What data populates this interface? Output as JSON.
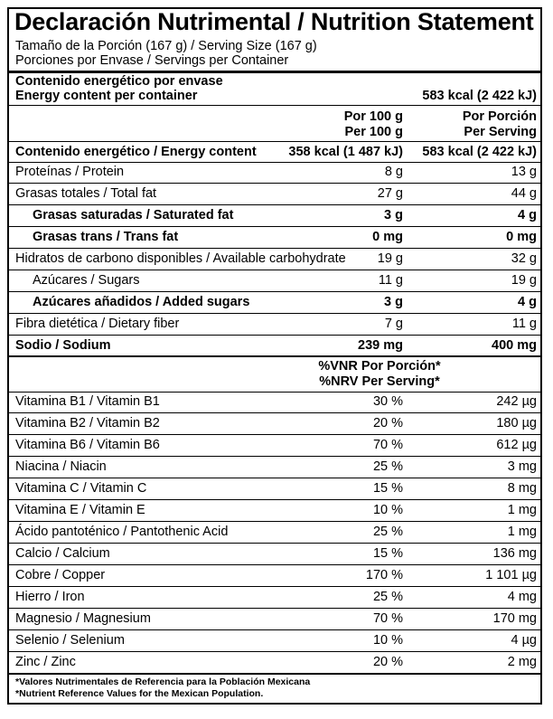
{
  "title": "Declaración Nutrimental / Nutrition Statement",
  "serving_size": "Tamaño de la Porción (167 g) / Serving Size (167 g)",
  "servings_per_container": "Porciones por Envase / Servings per Container",
  "energy_container": {
    "label_es": "Contenido energético por envase",
    "label_en": "Energy content per container",
    "value": "583 kcal (2 422 kJ)"
  },
  "col_headers": {
    "per100_es": "Por 100 g",
    "per100_en": "Per 100 g",
    "serving_es": "Por Porción",
    "serving_en": "Per Serving"
  },
  "energy_row": {
    "label": "Contenido energético / Energy content",
    "per100": "358 kcal (1 487 kJ)",
    "serving": "583 kcal (2 422 kJ)"
  },
  "nutrients": [
    {
      "label": "Proteínas / Protein",
      "per100": "8 g",
      "serving": "13 g"
    },
    {
      "label": "Grasas totales / Total fat",
      "per100": "27 g",
      "serving": "44 g"
    },
    {
      "label": "Grasas saturadas / Saturated fat",
      "per100": "3 g",
      "serving": "4 g"
    },
    {
      "label": "Grasas trans / Trans fat",
      "per100": "0 mg",
      "serving": "0 mg"
    },
    {
      "label": "Hidratos de carbono disponibles / Available carbohydrate",
      "per100": "19 g",
      "serving": "32 g"
    },
    {
      "label": "Azúcares / Sugars",
      "per100": "11 g",
      "serving": "19 g"
    },
    {
      "label": "Azúcares añadidos / Added sugars",
      "per100": "3 g",
      "serving": "4 g"
    },
    {
      "label": "Fibra dietética / Dietary fiber",
      "per100": "7 g",
      "serving": "11 g"
    },
    {
      "label": "Sodio / Sodium",
      "per100": "239 mg",
      "serving": "400 mg"
    }
  ],
  "vnr_header": {
    "es": "%VNR Por Porción*",
    "en": "%NRV Per Serving*"
  },
  "vitamins": [
    {
      "label": "Vitamina B1 / Vitamin B1",
      "pct": "30 %",
      "amount": "242 µg"
    },
    {
      "label": "Vitamina B2 / Vitamin B2",
      "pct": "20 %",
      "amount": "180 µg"
    },
    {
      "label": "Vitamina B6 / Vitamin B6",
      "pct": "70 %",
      "amount": "612 µg"
    },
    {
      "label": "Niacina / Niacin",
      "pct": "25 %",
      "amount": "3 mg"
    },
    {
      "label": "Vitamina C / Vitamin C",
      "pct": "15 %",
      "amount": "8 mg"
    },
    {
      "label": "Vitamina E / Vitamin E",
      "pct": "10 %",
      "amount": "1 mg"
    },
    {
      "label": "Ácido pantoténico / Pantothenic Acid",
      "pct": "25 %",
      "amount": "1 mg"
    },
    {
      "label": "Calcio / Calcium",
      "pct": "15 %",
      "amount": "136 mg"
    },
    {
      "label": "Cobre / Copper",
      "pct": "170 %",
      "amount": "1 101 µg"
    },
    {
      "label": "Hierro / Iron",
      "pct": "25 %",
      "amount": "4 mg"
    },
    {
      "label": "Magnesio / Magnesium",
      "pct": "70 %",
      "amount": "170 mg"
    },
    {
      "label": "Selenio / Selenium",
      "pct": "10 %",
      "amount": "4 µg"
    },
    {
      "label": "Zinc / Zinc",
      "pct": "20 %",
      "amount": "2 mg"
    }
  ],
  "footnotes": [
    "*Valores Nutrimentales de Referencia para la Población Mexicana",
    "*Nutrient Reference Values for the Mexican Population."
  ]
}
